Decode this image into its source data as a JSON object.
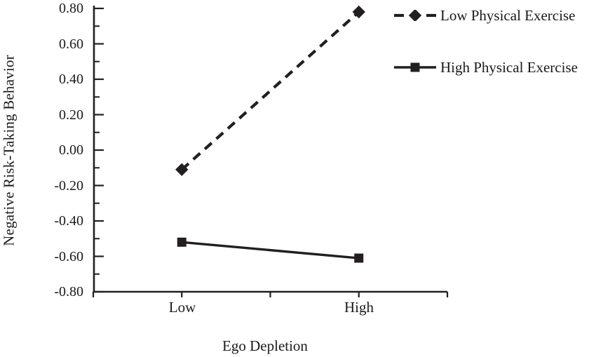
{
  "chart_data": {
    "type": "line",
    "title": "",
    "xlabel": "Ego Depletion",
    "ylabel": "Negative Risk-Taking Behavior",
    "categories": [
      "Low",
      "High"
    ],
    "ylim": [
      -0.8,
      0.8
    ],
    "ytick_step": 0.2,
    "yminor_step": 0.1,
    "ytick_labels": [
      "0.80",
      "0.60",
      "0.40",
      "0.20",
      "0.00",
      "-0.20",
      "-0.40",
      "-0.60",
      "-0.80"
    ],
    "grid": false,
    "legend_position": "outside-top-right",
    "line_color": "#231f20",
    "series": [
      {
        "name": "Low Physical Exercise",
        "values": [
          -0.11,
          0.78
        ],
        "line_style": "dashed",
        "marker": "diamond"
      },
      {
        "name": "High Physical Exercise",
        "values": [
          -0.52,
          -0.61
        ],
        "line_style": "solid",
        "marker": "square"
      }
    ]
  }
}
